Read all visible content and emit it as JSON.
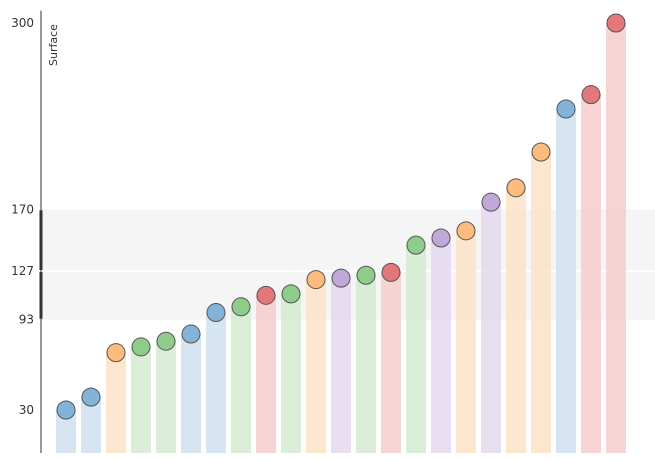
{
  "chart_data": {
    "type": "bar",
    "ylabel": "Surface",
    "xlabel": "",
    "ylim": [
      8,
      310
    ],
    "y_ticks": [
      30,
      93,
      127,
      170,
      300
    ],
    "bands": [
      {
        "from": 93,
        "to": 127,
        "color": "#f5f5f5"
      },
      {
        "from": 127,
        "to": 170,
        "color": "#f5f5f5"
      }
    ],
    "palette": {
      "blue": {
        "bar": "#cfe0ee",
        "dot": "#84b3d9"
      },
      "orange": {
        "bar": "#fde2c6",
        "dot": "#fdbb7e"
      },
      "green": {
        "bar": "#d4ead0",
        "dot": "#8fcb8a"
      },
      "red": {
        "bar": "#f4cccb",
        "dot": "#e3787a"
      },
      "purple": {
        "bar": "#e3d9ec",
        "dot": "#c1a8d8"
      }
    },
    "values": [
      {
        "value": 30,
        "color": "blue"
      },
      {
        "value": 39,
        "color": "blue"
      },
      {
        "value": 70,
        "color": "orange"
      },
      {
        "value": 74,
        "color": "green"
      },
      {
        "value": 78,
        "color": "green"
      },
      {
        "value": 83,
        "color": "blue"
      },
      {
        "value": 98,
        "color": "blue"
      },
      {
        "value": 102,
        "color": "green"
      },
      {
        "value": 110,
        "color": "red"
      },
      {
        "value": 111,
        "color": "green"
      },
      {
        "value": 121,
        "color": "orange"
      },
      {
        "value": 122,
        "color": "purple"
      },
      {
        "value": 124,
        "color": "green"
      },
      {
        "value": 126,
        "color": "red"
      },
      {
        "value": 145,
        "color": "green"
      },
      {
        "value": 150,
        "color": "purple"
      },
      {
        "value": 155,
        "color": "orange"
      },
      {
        "value": 175,
        "color": "purple"
      },
      {
        "value": 185,
        "color": "orange"
      },
      {
        "value": 210,
        "color": "orange"
      },
      {
        "value": 240,
        "color": "blue"
      },
      {
        "value": 250,
        "color": "red"
      },
      {
        "value": 300,
        "color": "red"
      }
    ]
  }
}
